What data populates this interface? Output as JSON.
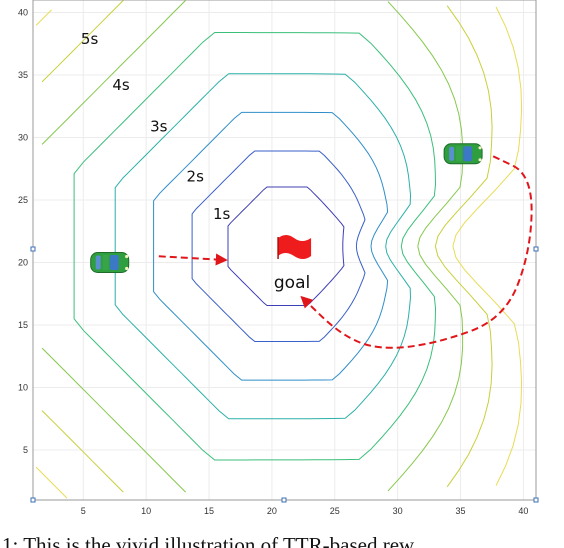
{
  "chart_data": {
    "type": "contour",
    "xlim": [
      1,
      41
    ],
    "ylim": [
      1,
      41
    ],
    "xticks": [
      "5",
      "10",
      "15",
      "20",
      "25",
      "30",
      "35",
      "40"
    ],
    "yticks": [
      "5",
      "10",
      "15",
      "20",
      "25",
      "30",
      "35",
      "40"
    ],
    "grid": true,
    "goal": {
      "x": 22,
      "y": 21,
      "label": "goal"
    },
    "contour_labels": [
      {
        "text": "1s",
        "x": 16,
        "y": 23.5
      },
      {
        "text": "2s",
        "x": 13.9,
        "y": 26.5
      },
      {
        "text": "3s",
        "x": 11,
        "y": 30.5
      },
      {
        "text": "4s",
        "x": 8,
        "y": 33.8
      },
      {
        "text": "5s",
        "x": 5.5,
        "y": 37.5
      }
    ],
    "vehicles": [
      {
        "name": "left-car",
        "x": 7.1,
        "y": 20
      },
      {
        "name": "right-car",
        "x": 35.2,
        "y": 28.7
      }
    ],
    "paths": [
      {
        "name": "straight-path",
        "points": [
          [
            11,
            20.5
          ],
          [
            16.3,
            20.2
          ]
        ]
      },
      {
        "name": "curved-path",
        "points": [
          [
            37.6,
            28.5
          ],
          [
            40.7,
            27
          ],
          [
            40.6,
            21
          ],
          [
            38.5,
            15.5
          ],
          [
            33,
            13.5
          ],
          [
            28.5,
            13
          ],
          [
            25.5,
            14.2
          ],
          [
            22.4,
            17.2
          ]
        ]
      }
    ],
    "caption": "1: This is the vivid illustration of TTR-based rew"
  },
  "colors": {
    "contour_1s": "#3f3fb5",
    "contour_2s": "#3a5fc8",
    "contour_3s": "#2f8ec9",
    "contour_4s": "#2bb0a8",
    "contour_5s": "#3bbf7a",
    "contour_6s": "#86c84c",
    "contour_7s": "#c8cf3a",
    "contour_8s": "#e8dc55",
    "path": "#e0161b",
    "flag": "#ee1c1c",
    "car_body": "#2e9e3e",
    "car_glass": "#3c79c4"
  }
}
